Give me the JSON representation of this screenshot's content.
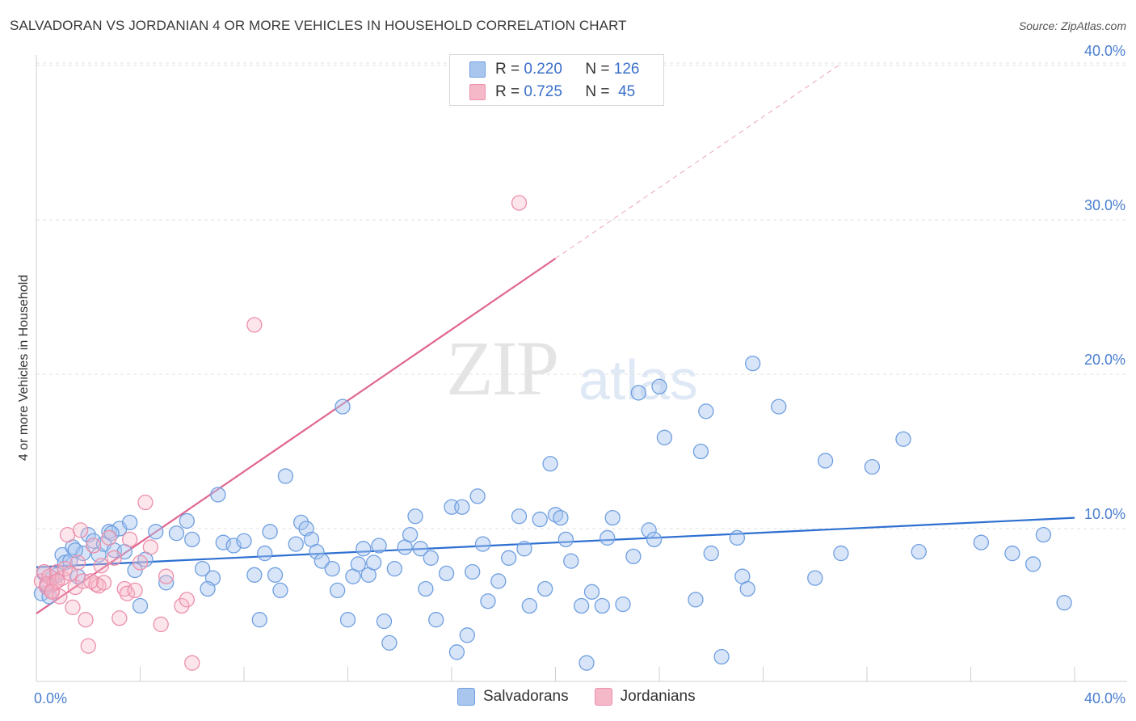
{
  "header": {
    "title": "SALVADORAN VS JORDANIAN 4 OR MORE VEHICLES IN HOUSEHOLD CORRELATION CHART",
    "source": "Source: ZipAtlas.com"
  },
  "watermark": {
    "zip": "ZIP",
    "atlas": "atlas"
  },
  "legend_top": {
    "rows": [
      {
        "r_label": "R =",
        "r_value": "0.220",
        "n_label": "N =",
        "n_value": "126",
        "color": "#a9c6ef"
      },
      {
        "r_label": "R =",
        "r_value": "0.725",
        "n_label": "N =",
        "n_value": "45",
        "color": "#f5b8c9"
      }
    ]
  },
  "legend_bottom": {
    "items": [
      {
        "label": "Salvadorans",
        "color": "#a9c6ef"
      },
      {
        "label": "Jordanians",
        "color": "#f5b8c9"
      }
    ]
  },
  "chart_data": {
    "type": "scatter",
    "title": "SALVADORAN VS JORDANIAN 4 OR MORE VEHICLES IN HOUSEHOLD CORRELATION CHART",
    "xlabel": "",
    "ylabel": "4 or more Vehicles in Household",
    "xlim": [
      0,
      40
    ],
    "ylim": [
      0,
      42
    ],
    "x_tick_labels": [
      "0.0%",
      "40.0%"
    ],
    "y_ticks": [
      10,
      20,
      30,
      40
    ],
    "y_tick_labels": [
      "10.0%",
      "20.0%",
      "30.0%",
      "40.0%"
    ],
    "grid": true,
    "legend_position": "top-center",
    "series": [
      {
        "name": "Salvadorans",
        "color": "#6f9fe0",
        "fill": "#a9c6ef",
        "trend": {
          "x": [
            0,
            40
          ],
          "y": [
            7.5,
            10.7
          ],
          "color": "#2e6fd1"
        },
        "points": [
          [
            0.2,
            5.8
          ],
          [
            0.4,
            6.3
          ],
          [
            0.5,
            5.6
          ],
          [
            0.6,
            6.8
          ],
          [
            0.8,
            7.0
          ],
          [
            1.0,
            8.3
          ],
          [
            1.1,
            7.8
          ],
          [
            1.3,
            7.9
          ],
          [
            1.4,
            8.8
          ],
          [
            1.6,
            6.9
          ],
          [
            1.8,
            8.4
          ],
          [
            2.0,
            9.6
          ],
          [
            2.2,
            9.2
          ],
          [
            2.4,
            8.3
          ],
          [
            2.6,
            9.0
          ],
          [
            2.8,
            9.8
          ],
          [
            3.0,
            8.6
          ],
          [
            3.2,
            10.0
          ],
          [
            3.4,
            8.5
          ],
          [
            3.6,
            10.4
          ],
          [
            3.8,
            7.3
          ],
          [
            4.2,
            8.0
          ],
          [
            4.6,
            9.8
          ],
          [
            5.0,
            6.5
          ],
          [
            5.4,
            9.7
          ],
          [
            5.8,
            10.5
          ],
          [
            6.0,
            9.3
          ],
          [
            6.4,
            7.4
          ],
          [
            6.8,
            6.8
          ],
          [
            7.0,
            12.2
          ],
          [
            7.2,
            9.1
          ],
          [
            7.6,
            8.9
          ],
          [
            8.0,
            9.2
          ],
          [
            8.4,
            7.0
          ],
          [
            8.8,
            8.4
          ],
          [
            9.2,
            7.0
          ],
          [
            9.4,
            6.0
          ],
          [
            9.6,
            13.4
          ],
          [
            10.0,
            9.0
          ],
          [
            10.2,
            10.4
          ],
          [
            10.4,
            10.0
          ],
          [
            10.6,
            9.3
          ],
          [
            10.8,
            8.5
          ],
          [
            11.0,
            7.9
          ],
          [
            11.4,
            7.4
          ],
          [
            11.6,
            6.0
          ],
          [
            11.8,
            17.9
          ],
          [
            12.2,
            6.9
          ],
          [
            12.4,
            7.7
          ],
          [
            12.6,
            8.7
          ],
          [
            12.8,
            7.0
          ],
          [
            13.0,
            7.8
          ],
          [
            13.2,
            8.9
          ],
          [
            13.4,
            4.0
          ],
          [
            13.6,
            2.6
          ],
          [
            13.8,
            7.4
          ],
          [
            14.2,
            8.8
          ],
          [
            14.4,
            9.6
          ],
          [
            14.6,
            10.8
          ],
          [
            14.8,
            8.7
          ],
          [
            15.0,
            6.1
          ],
          [
            15.2,
            8.1
          ],
          [
            15.4,
            4.1
          ],
          [
            15.8,
            7.1
          ],
          [
            16.0,
            11.4
          ],
          [
            16.2,
            2.0
          ],
          [
            16.4,
            11.4
          ],
          [
            16.6,
            3.1
          ],
          [
            16.8,
            7.2
          ],
          [
            17.0,
            12.1
          ],
          [
            17.2,
            9.0
          ],
          [
            17.4,
            5.3
          ],
          [
            17.8,
            6.6
          ],
          [
            18.2,
            8.1
          ],
          [
            18.6,
            10.8
          ],
          [
            18.8,
            8.7
          ],
          [
            19.0,
            5.0
          ],
          [
            19.4,
            10.6
          ],
          [
            19.6,
            6.1
          ],
          [
            19.8,
            14.2
          ],
          [
            20.0,
            10.9
          ],
          [
            20.2,
            10.7
          ],
          [
            20.4,
            9.3
          ],
          [
            20.6,
            7.9
          ],
          [
            21.0,
            5.0
          ],
          [
            21.2,
            1.3
          ],
          [
            21.4,
            5.9
          ],
          [
            21.8,
            5.0
          ],
          [
            22.0,
            9.4
          ],
          [
            22.2,
            10.7
          ],
          [
            22.6,
            5.1
          ],
          [
            23.0,
            8.2
          ],
          [
            23.2,
            18.8
          ],
          [
            23.6,
            9.9
          ],
          [
            23.8,
            9.3
          ],
          [
            24.0,
            19.2
          ],
          [
            24.2,
            15.9
          ],
          [
            25.4,
            5.4
          ],
          [
            25.6,
            15.0
          ],
          [
            25.8,
            17.6
          ],
          [
            26.0,
            8.4
          ],
          [
            26.4,
            1.7
          ],
          [
            27.0,
            9.4
          ],
          [
            27.2,
            6.9
          ],
          [
            27.4,
            6.1
          ],
          [
            27.6,
            20.7
          ],
          [
            28.6,
            17.9
          ],
          [
            30.0,
            6.8
          ],
          [
            30.4,
            14.4
          ],
          [
            31.0,
            8.4
          ],
          [
            32.2,
            14.0
          ],
          [
            33.4,
            15.8
          ],
          [
            34.0,
            8.5
          ],
          [
            36.4,
            9.1
          ],
          [
            37.6,
            8.4
          ],
          [
            38.4,
            7.7
          ],
          [
            38.8,
            9.6
          ],
          [
            39.6,
            5.2
          ],
          [
            0.3,
            7.1
          ],
          [
            1.5,
            8.6
          ],
          [
            2.9,
            9.7
          ],
          [
            4.0,
            5.0
          ],
          [
            6.6,
            6.1
          ],
          [
            8.6,
            4.1
          ],
          [
            12.0,
            4.1
          ],
          [
            9.0,
            9.8
          ]
        ]
      },
      {
        "name": "Jordanians",
        "color": "#ec8fab",
        "fill": "#f5b8c9",
        "trend": {
          "x": [
            0,
            20
          ],
          "y": [
            4.5,
            27.5
          ],
          "dashed_to": [
            30.9,
            40.0
          ],
          "color": "#e0668f"
        },
        "points": [
          [
            0.2,
            6.6
          ],
          [
            0.3,
            7.2
          ],
          [
            0.4,
            6.2
          ],
          [
            0.5,
            6.9
          ],
          [
            0.6,
            6.0
          ],
          [
            0.7,
            6.5
          ],
          [
            0.8,
            7.2
          ],
          [
            0.9,
            5.6
          ],
          [
            1.0,
            6.8
          ],
          [
            1.2,
            9.6
          ],
          [
            1.4,
            4.9
          ],
          [
            1.5,
            6.2
          ],
          [
            1.6,
            7.8
          ],
          [
            1.7,
            9.9
          ],
          [
            1.8,
            6.6
          ],
          [
            1.9,
            4.1
          ],
          [
            2.0,
            2.4
          ],
          [
            2.2,
            8.9
          ],
          [
            2.3,
            6.4
          ],
          [
            2.4,
            6.3
          ],
          [
            2.6,
            6.5
          ],
          [
            2.8,
            9.4
          ],
          [
            3.0,
            8.1
          ],
          [
            3.2,
            4.2
          ],
          [
            3.4,
            6.1
          ],
          [
            3.5,
            5.8
          ],
          [
            3.6,
            9.3
          ],
          [
            3.8,
            6.0
          ],
          [
            4.0,
            7.8
          ],
          [
            4.2,
            11.7
          ],
          [
            4.4,
            8.8
          ],
          [
            4.8,
            3.8
          ],
          [
            5.0,
            6.9
          ],
          [
            5.6,
            5.0
          ],
          [
            5.8,
            5.4
          ],
          [
            6.0,
            1.3
          ],
          [
            8.4,
            23.2
          ],
          [
            18.6,
            31.1
          ],
          [
            0.4,
            6.4
          ],
          [
            1.1,
            7.4
          ],
          [
            1.3,
            7.1
          ],
          [
            0.6,
            5.9
          ],
          [
            2.5,
            7.6
          ],
          [
            0.8,
            6.6
          ],
          [
            2.1,
            6.6
          ]
        ]
      }
    ]
  }
}
